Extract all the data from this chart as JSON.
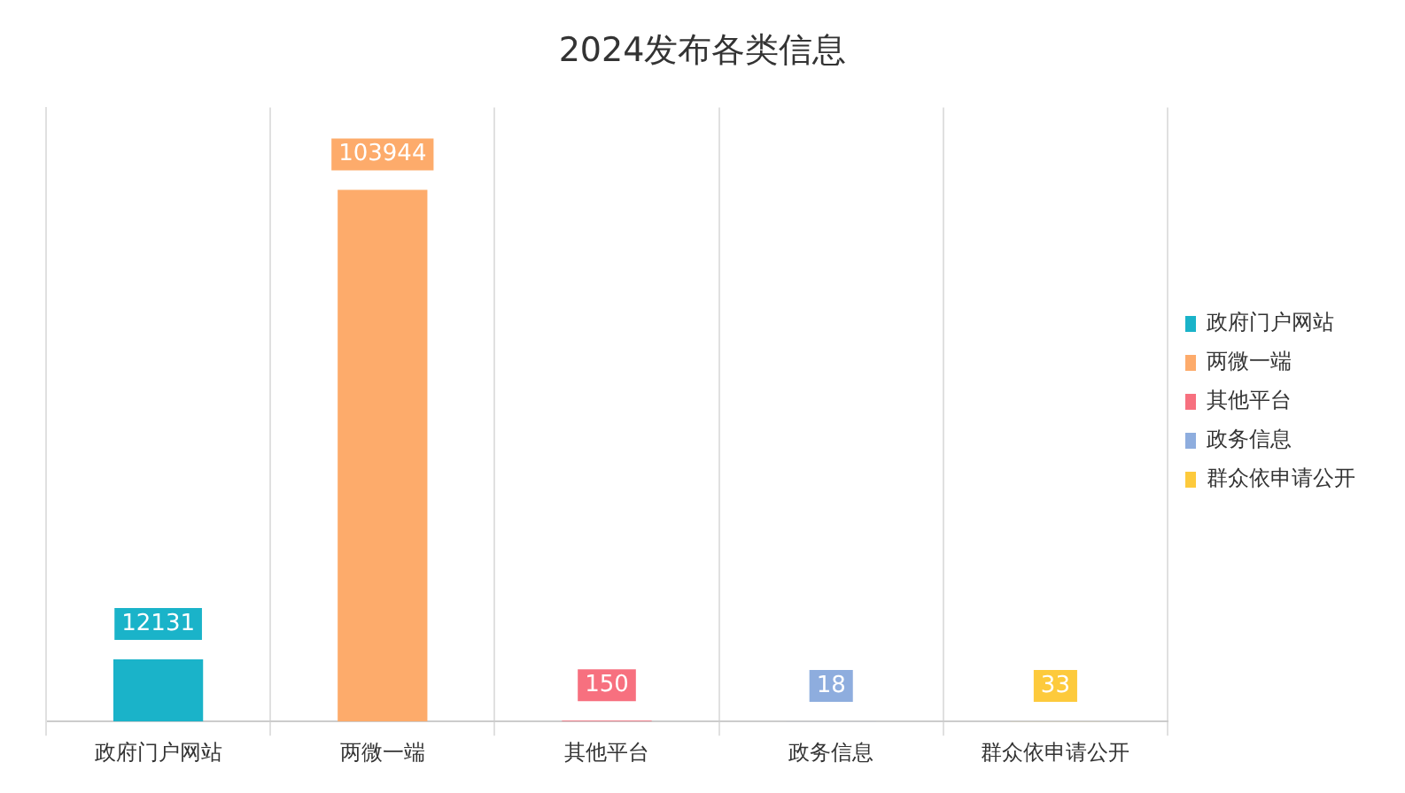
{
  "chart_data": {
    "type": "bar",
    "title": "2024发布各类信息",
    "categories": [
      "政府门户网站",
      "两微一端",
      "其他平台",
      "政务信息",
      "群众依申请公开"
    ],
    "series": [
      {
        "name": "政府门户网站",
        "color": "#1ab3c9",
        "values": [
          12131,
          null,
          null,
          null,
          null
        ]
      },
      {
        "name": "两微一端",
        "color": "#fdab6b",
        "values": [
          null,
          103944,
          null,
          null,
          null
        ]
      },
      {
        "name": "其他平台",
        "color": "#f7707f",
        "values": [
          null,
          null,
          150,
          null,
          null
        ]
      },
      {
        "name": "政务信息",
        "color": "#8eadde",
        "values": [
          null,
          null,
          null,
          18,
          null
        ]
      },
      {
        "name": "群众依申请公开",
        "color": "#fdca3c",
        "values": [
          null,
          null,
          null,
          null,
          33
        ]
      }
    ],
    "data_labels": true,
    "grid": "x",
    "legend": "right"
  }
}
